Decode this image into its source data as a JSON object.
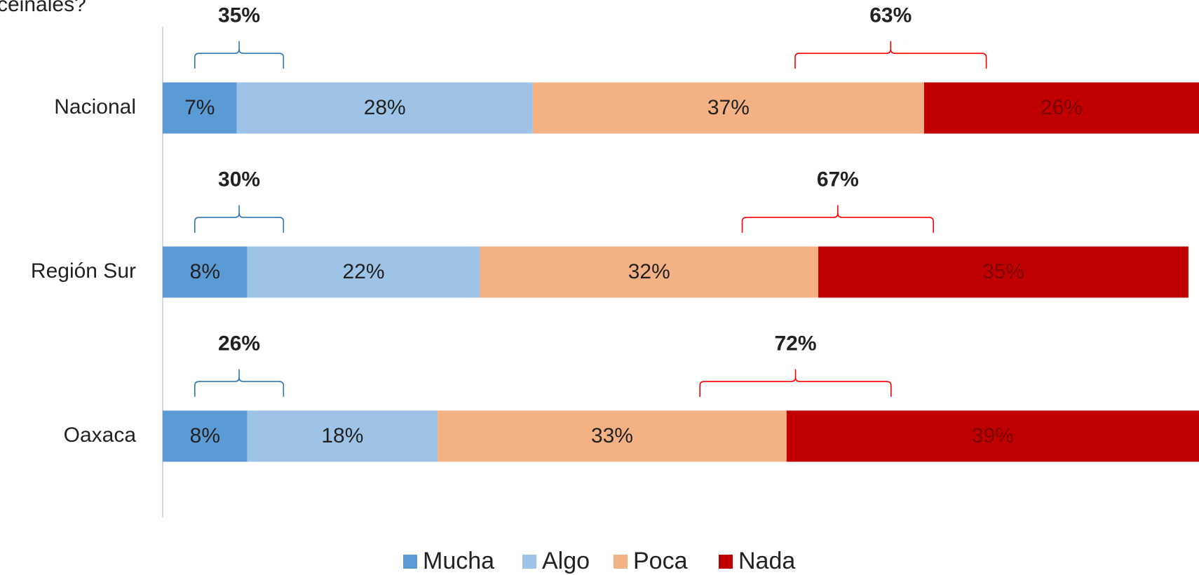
{
  "chart_data": {
    "type": "stacked-bar-horizontal",
    "title": "ceinales?",
    "categories": [
      "Nacional",
      "Región Sur",
      "Oaxaca"
    ],
    "series": [
      {
        "name": "Mucha",
        "color": "#5b9bd5",
        "values": [
          7,
          8,
          8
        ],
        "value_labels": [
          "7%",
          "8%",
          "8%"
        ]
      },
      {
        "name": "Algo",
        "color": "#9dc3e6",
        "values": [
          28,
          22,
          18
        ],
        "value_labels": [
          "28%",
          "22%",
          "18%"
        ]
      },
      {
        "name": "Poca",
        "color": "#f4b183",
        "values": [
          37,
          32,
          33
        ],
        "value_labels": [
          "37%",
          "32%",
          "33%"
        ]
      },
      {
        "name": "Nada",
        "color": "#c00000",
        "values": [
          26,
          35,
          39
        ],
        "value_labels": [
          "26%",
          "35%",
          "39%"
        ]
      }
    ],
    "brackets": [
      {
        "color": "#2e75b6",
        "values": [
          35,
          30,
          26
        ],
        "value_labels": [
          "35%",
          "30%",
          "26%"
        ]
      },
      {
        "color": "#ff0000",
        "values": [
          63,
          67,
          72
        ],
        "value_labels": [
          "63%",
          "67%",
          "72%"
        ]
      }
    ],
    "legend": "bottom"
  }
}
